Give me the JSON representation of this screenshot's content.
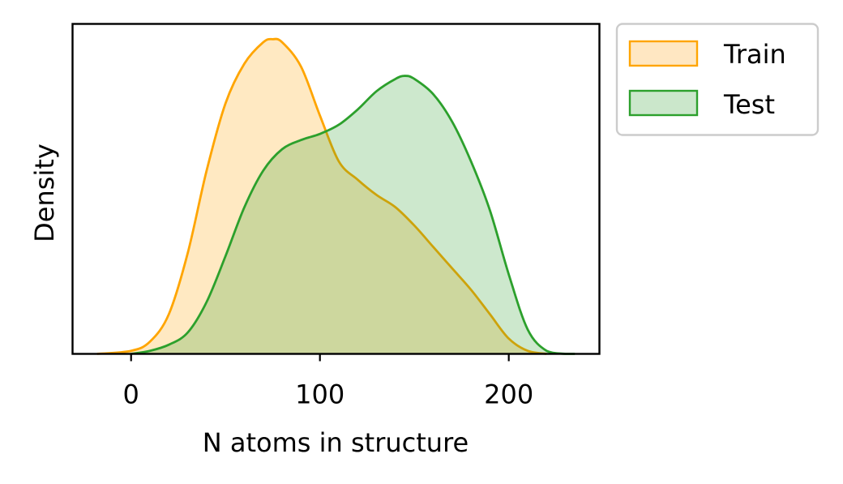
{
  "chart_data": {
    "type": "area",
    "xlabel": "N atoms in structure",
    "ylabel": "Density",
    "xlim": [
      -31,
      248
    ],
    "ylim": [
      0,
      1.08
    ],
    "xticks": [
      0,
      100,
      200
    ],
    "grid": false,
    "legend_position": "outside-upper-right",
    "series": [
      {
        "name": "Train",
        "color": "#ffa500",
        "fill": "#ffe7c2",
        "x": [
          -18,
          0,
          10,
          20,
          30,
          40,
          50,
          60,
          70,
          75,
          80,
          90,
          100,
          110,
          120,
          130,
          140,
          150,
          160,
          170,
          180,
          190,
          200,
          210,
          220
        ],
        "y": [
          0.0,
          0.01,
          0.04,
          0.13,
          0.33,
          0.6,
          0.82,
          0.95,
          1.02,
          1.03,
          1.02,
          0.94,
          0.78,
          0.63,
          0.57,
          0.52,
          0.48,
          0.42,
          0.35,
          0.28,
          0.21,
          0.13,
          0.05,
          0.01,
          0.0
        ]
      },
      {
        "name": "Test",
        "color": "#2ca02c",
        "fill": "#cbe7cb",
        "x": [
          0,
          10,
          20,
          30,
          40,
          50,
          60,
          70,
          80,
          90,
          100,
          110,
          120,
          130,
          140,
          145,
          150,
          160,
          170,
          180,
          190,
          200,
          210,
          220,
          230,
          235
        ],
        "y": [
          0.0,
          0.01,
          0.03,
          0.07,
          0.17,
          0.32,
          0.48,
          0.6,
          0.67,
          0.7,
          0.72,
          0.75,
          0.8,
          0.86,
          0.9,
          0.91,
          0.9,
          0.85,
          0.76,
          0.63,
          0.47,
          0.26,
          0.08,
          0.01,
          0.0,
          0.0
        ]
      }
    ]
  }
}
